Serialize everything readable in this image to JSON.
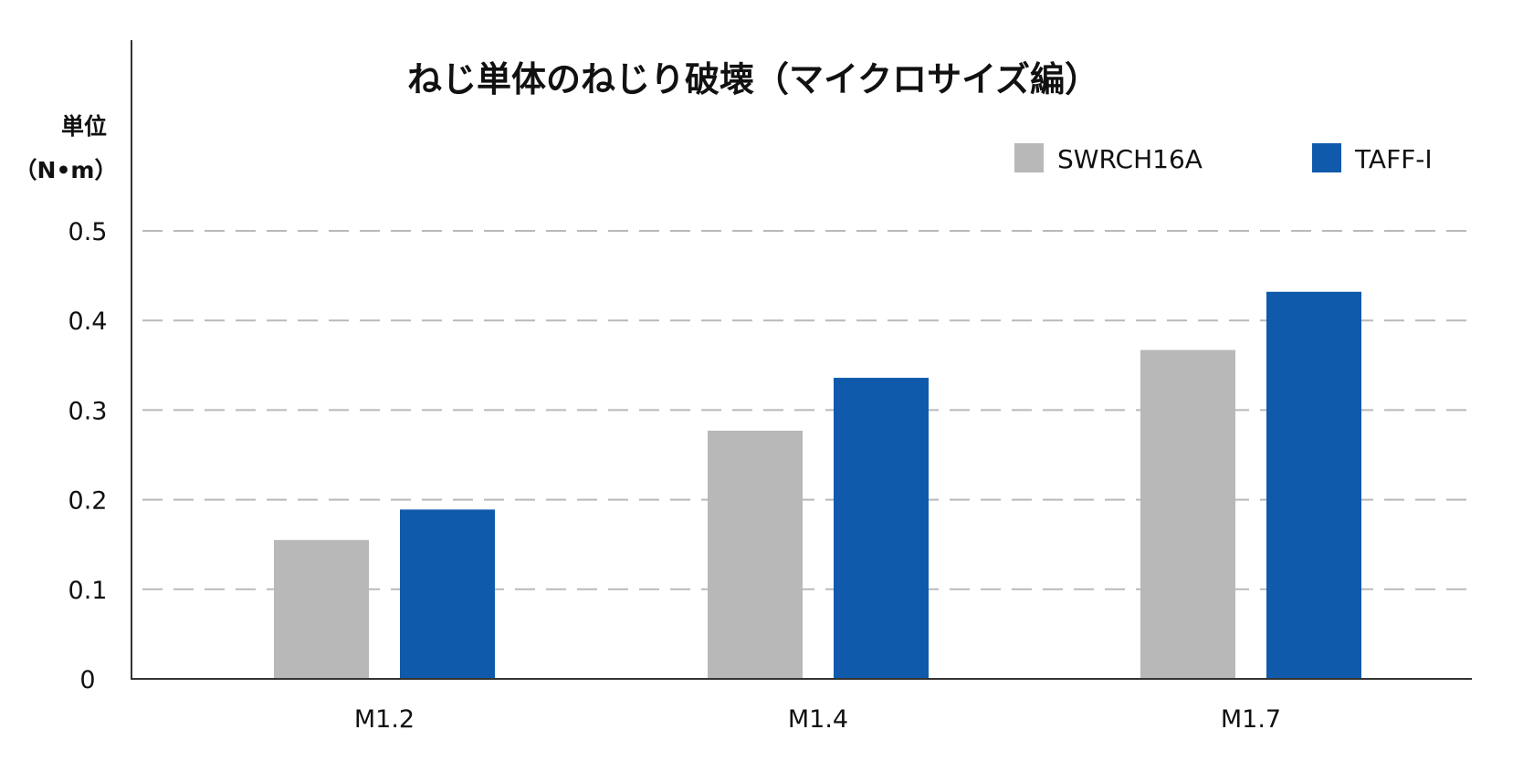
{
  "chart_data": {
    "type": "bar",
    "title": "ねじ単体のねじり破壊（マイクロサイズ編）",
    "ylabel": "単位（N•m）",
    "xlabel": "",
    "ylim": [
      0,
      0.5
    ],
    "yticks": [
      "0",
      "0.1",
      "0.2",
      "0.3",
      "0.4",
      "0.5"
    ],
    "grid": true,
    "legend": "top-right",
    "categories": [
      "M1.2",
      "M1.4",
      "M1.7"
    ],
    "series": [
      {
        "name": "SWRCH16A",
        "color": "#b8b8b8",
        "values": [
          0.155,
          0.277,
          0.367
        ]
      },
      {
        "name": "TAFF-Ⅰ",
        "color": "#0f5aab",
        "values": [
          0.189,
          0.336,
          0.432
        ]
      }
    ]
  },
  "unit": {
    "line1": "単位",
    "line2": "（N•m）"
  }
}
